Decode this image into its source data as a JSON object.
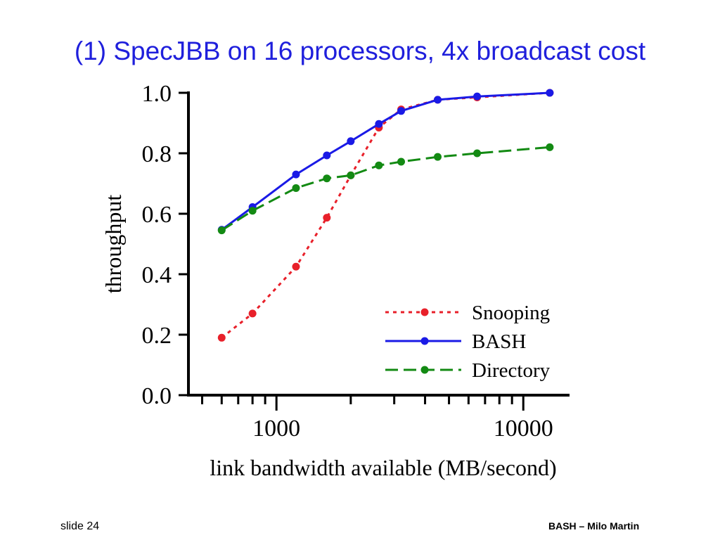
{
  "slide": {
    "title": "(1) SpecJBB on 16 processors, 4x broadcast cost",
    "footer_left": "slide 24",
    "footer_right": "BASH – Milo Martin"
  },
  "chart_data": {
    "type": "line",
    "title": "",
    "xlabel": "link bandwidth available (MB/second)",
    "ylabel": "throughput",
    "x_scale": "log",
    "xlim": [
      440,
      13500
    ],
    "ylim": [
      0,
      1.0
    ],
    "yticks": [
      "0.0",
      "0.2",
      "0.4",
      "0.6",
      "0.8",
      "1.0"
    ],
    "xtick_labels": [
      "1000",
      "10000"
    ],
    "grid": false,
    "legend_position": "bottom-right",
    "series": [
      {
        "name": "Snooping",
        "color": "#e8202a",
        "style": "dotted",
        "points": [
          [
            600,
            0.19
          ],
          [
            800,
            0.27
          ],
          [
            1200,
            0.425
          ],
          [
            1600,
            0.587
          ],
          [
            2000,
            0.727
          ],
          [
            2600,
            0.885
          ],
          [
            3200,
            0.945
          ],
          [
            4500,
            0.977
          ],
          [
            6500,
            0.985
          ],
          [
            12800,
            1.0
          ]
        ]
      },
      {
        "name": "BASH",
        "color": "#1a1ae6",
        "style": "solid",
        "points": [
          [
            600,
            0.547
          ],
          [
            800,
            0.622
          ],
          [
            1200,
            0.73
          ],
          [
            1600,
            0.793
          ],
          [
            2000,
            0.84
          ],
          [
            2600,
            0.897
          ],
          [
            3200,
            0.94
          ],
          [
            4500,
            0.977
          ],
          [
            6500,
            0.988
          ],
          [
            12800,
            1.0
          ]
        ]
      },
      {
        "name": "Directory",
        "color": "#138a13",
        "style": "dashed",
        "points": [
          [
            600,
            0.545
          ],
          [
            800,
            0.61
          ],
          [
            1200,
            0.685
          ],
          [
            1600,
            0.717
          ],
          [
            2000,
            0.727
          ],
          [
            2600,
            0.76
          ],
          [
            3200,
            0.772
          ],
          [
            4500,
            0.788
          ],
          [
            6500,
            0.8
          ],
          [
            12800,
            0.82
          ]
        ]
      }
    ]
  }
}
